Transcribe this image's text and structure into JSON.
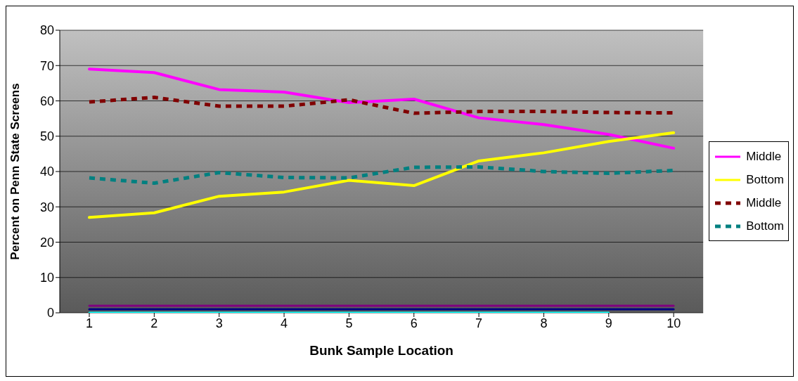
{
  "chart_data": {
    "type": "line",
    "xlabel": "Bunk Sample Location",
    "ylabel": "Percent on Penn State Screens",
    "categories": [
      "1",
      "2",
      "3",
      "4",
      "5",
      "6",
      "7",
      "8",
      "9",
      "10"
    ],
    "series": [
      {
        "name": "Middle",
        "color": "#ff00ff",
        "line_style": "solid",
        "values": [
          69,
          68,
          63.2,
          62.5,
          59.5,
          60.5,
          55.2,
          53.3,
          50.5,
          46.6
        ]
      },
      {
        "name": "Bottom",
        "color": "#ffff00",
        "line_style": "solid",
        "values": [
          27,
          28.3,
          33,
          34.2,
          37.5,
          36,
          43,
          45.3,
          48.5,
          51
        ]
      },
      {
        "name": "Middle",
        "color": "#800000",
        "line_style": "dashed",
        "values": [
          59.7,
          61,
          58.5,
          58.5,
          60.3,
          56.5,
          57,
          57,
          56.7,
          56.6
        ]
      },
      {
        "name": "Bottom",
        "color": "#008080",
        "line_style": "dashed",
        "values": [
          38.2,
          36.7,
          39.7,
          38.3,
          38.2,
          41.2,
          41.3,
          40,
          39.5,
          40.3
        ]
      },
      {
        "color": "#800080",
        "line_style": "solid",
        "values": [
          2,
          2,
          2,
          2,
          2,
          2,
          2,
          2,
          2,
          2
        ]
      },
      {
        "color": "#000080",
        "line_style": "solid",
        "values": [
          1,
          1,
          1,
          1,
          1,
          1,
          1,
          1,
          1,
          1
        ]
      },
      {
        "color": "#00ffff",
        "line_style": "solid",
        "values": [
          0,
          0,
          0,
          0,
          0,
          0,
          0,
          0,
          0,
          null
        ]
      }
    ],
    "ylim": [
      0,
      80
    ],
    "yticks": [
      0,
      10,
      20,
      30,
      40,
      50,
      60,
      70,
      80
    ],
    "grid": "y",
    "legend": "right",
    "marker": "none"
  }
}
